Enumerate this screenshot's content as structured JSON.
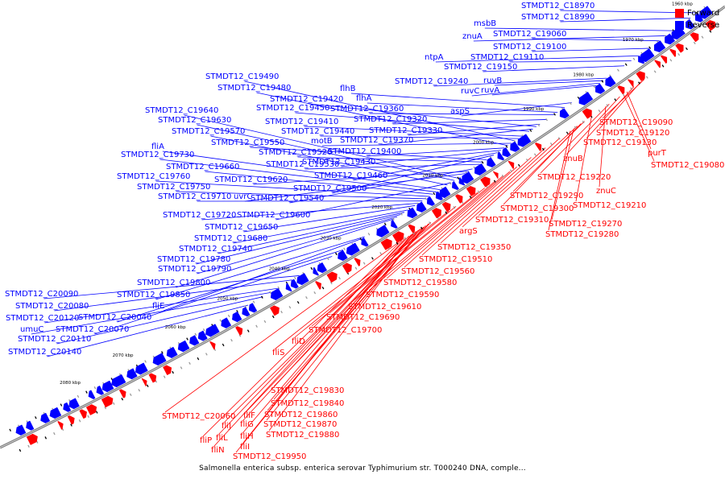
{
  "colors": {
    "forward": "#ff0000",
    "reverse": "#0000ff",
    "backbone": "#7f7f7f",
    "tick": "#000000"
  },
  "legend": [
    {
      "label": "Forward",
      "color": "#ff0000"
    },
    {
      "label": "Reverse",
      "color": "#0000ff"
    }
  ],
  "caption": "Salmonella enterica subsp. enterica serovar Typhimurium str. T000240 DNA, comple...",
  "axis_ticks": [
    "1960 kbp",
    "1970 kbp",
    "1980 kbp",
    "1990 kbp",
    "2000 kbp",
    "2010 kbp",
    "2020 kbp",
    "2030 kbp",
    "2040 kbp",
    "2050 kbp",
    "2060 kbp",
    "2070 kbp",
    "2080 kbp"
  ],
  "reverse_labels": [
    "STMDT12_C18970",
    "STMDT12_C18990",
    "msbB",
    "znuA",
    "STMDT12_C19060",
    "STMDT12_C19100",
    "ntpA",
    "STMDT12_C19110",
    "STMDT12_C19150",
    "STMDT12_C19240",
    "ruvB",
    "ruvC",
    "ruvA",
    "aspS",
    "STMDT12_C19490",
    "STMDT12_C19480",
    "flhB",
    "STMDT12_C19420",
    "flhA",
    "STMDT12_C19640",
    "STMDT12_C19450",
    "STMDT12_C19360",
    "STMDT12_C19630",
    "STMDT12_C19410",
    "STMDT12_C19320",
    "STMDT12_C19570",
    "STMDT12_C19440",
    "STMDT12_C19330",
    "STMDT12_C19550",
    "motB",
    "STMDT12_C19370",
    "fliA",
    "STMDT12_C19520",
    "STMDT12_C19400",
    "STMDT12_C19730",
    "STMDT12_C19530",
    "STMDT12_C19430",
    "STMDT12_C19660",
    "STMDT12_C19760",
    "STMDT12_C19460",
    "STMDT12_C19620",
    "STMDT12_C19750",
    "STMDT12_C19500",
    "STMDT12_C19710",
    "uvrC",
    "STMDT12_C19540",
    "STMDT12_C19720",
    "STMDT12_C19600",
    "STMDT12_C19650",
    "STMDT12_C19680",
    "STMDT12_C19740",
    "STMDT12_C19780",
    "STMDT12_C19790",
    "STMDT12_C19800",
    "STMDT12_C20090",
    "STMDT12_C19850",
    "STMDT12_C20080",
    "fliE",
    "STMDT12_C20120",
    "STMDT12_C20040",
    "umuC",
    "STMDT12_C20070",
    "STMDT12_C20110",
    "STMDT12_C20140"
  ],
  "forward_labels": [
    "STMDT12_C19090",
    "STMDT12_C19120",
    "STMDT12_C19130",
    "purT",
    "STMDT12_C19080",
    "znuB",
    "STMDT12_C19220",
    "znuC",
    "STMDT12_C19290",
    "STMDT12_C19210",
    "STMDT12_C19300",
    "STMDT12_C19270",
    "STMDT12_C19310",
    "STMDT12_C19280",
    "argS",
    "STMDT12_C19350",
    "STMDT12_C19510",
    "STMDT12_C19560",
    "STMDT12_C19580",
    "STMDT12_C19590",
    "STMDT12_C19610",
    "STMDT12_C19690",
    "STMDT12_C19700",
    "fliD",
    "fliS",
    "STMDT12_C19830",
    "STMDT12_C19840",
    "STMDT12_C19860",
    "fliF",
    "STMDT12_C19870",
    "STMDT12_C20060",
    "fliJ",
    "fliG",
    "fliH",
    "STMDT12_C19880",
    "fliP",
    "fliL",
    "fliI",
    "fliN",
    "STMDT12_C19950"
  ]
}
